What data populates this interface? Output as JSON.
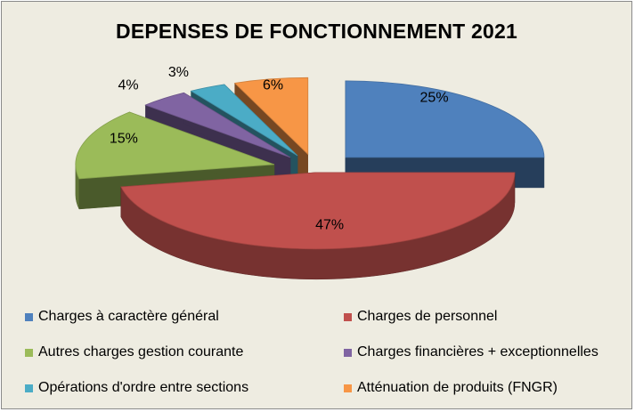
{
  "chart_data": {
    "type": "pie",
    "title": "DEPENSES DE FONCTIONNEMENT 2021",
    "categories": [
      "Charges à caractère général",
      "Charges de personnel",
      "Autres charges gestion courante",
      "Charges financières + exceptionnelles",
      "Opérations d'ordre entre sections",
      "Atténuation de produits (FNGR)"
    ],
    "values": [
      25,
      47,
      15,
      4,
      3,
      6
    ],
    "labels": [
      "25%",
      "47%",
      "15%",
      "4%",
      "3%",
      "6%"
    ],
    "colors": [
      "#4f81bd",
      "#c0504d",
      "#9bbb59",
      "#8064a2",
      "#4bacc6",
      "#f79646"
    ],
    "legend_position": "bottom",
    "style": "3d-exploded"
  }
}
